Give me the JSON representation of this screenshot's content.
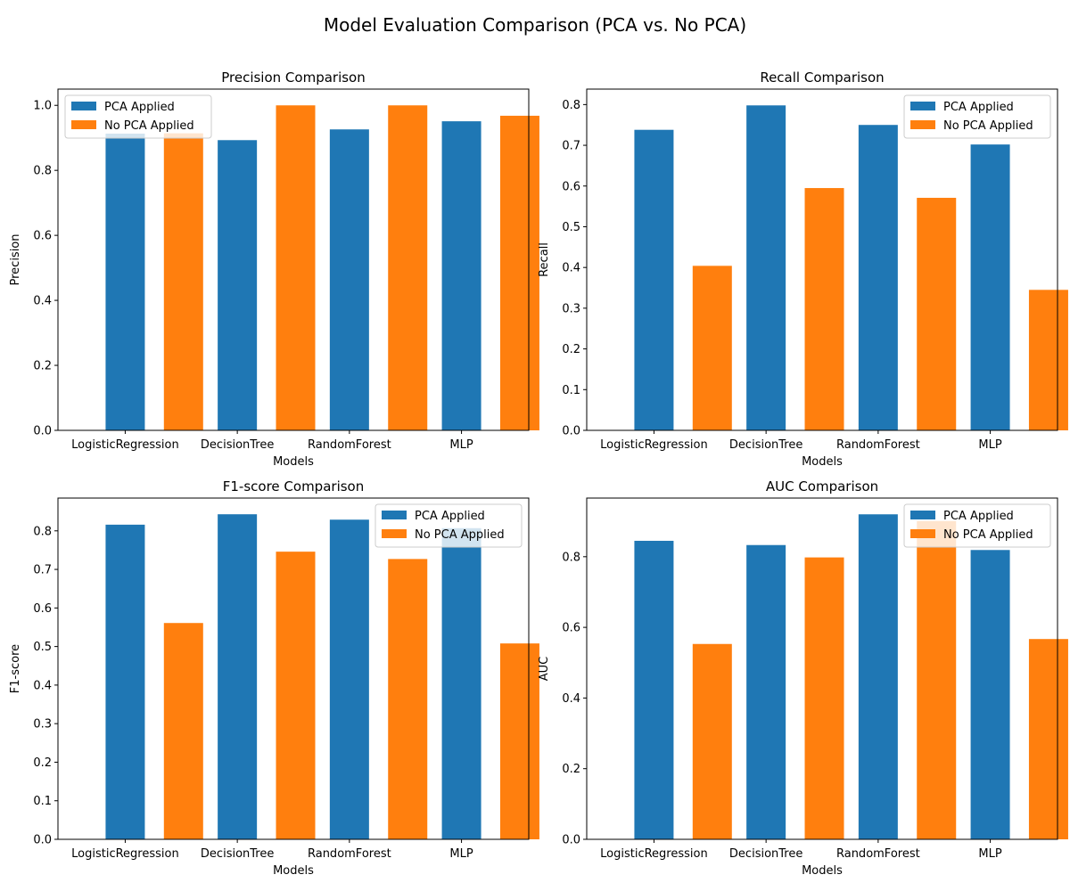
{
  "figure": {
    "title": "Model Evaluation Comparison (PCA vs. No PCA)"
  },
  "colors": {
    "pca": "#1f77b4",
    "no_pca": "#ff7f0e",
    "axis": "#000000",
    "legend_border": "#cccccc"
  },
  "chart_data": [
    {
      "type": "bar",
      "title": "Precision Comparison",
      "xlabel": "Models",
      "ylabel": "Precision",
      "categories": [
        "LogisticRegression",
        "DecisionTree",
        "RandomForest",
        "MLP"
      ],
      "series": [
        {
          "name": "PCA Applied",
          "values": [
            0.913,
            0.893,
            0.926,
            0.951
          ]
        },
        {
          "name": "No PCA Applied",
          "values": [
            0.914,
            1.0,
            1.0,
            0.968
          ]
        }
      ],
      "ylim": [
        0,
        1.05
      ],
      "yticks": [
        "0.0",
        "0.2",
        "0.4",
        "0.6",
        "0.8",
        "1.0"
      ],
      "grid": false,
      "legend": "top-left"
    },
    {
      "type": "bar",
      "title": "Recall Comparison",
      "xlabel": "Models",
      "ylabel": "Recall",
      "categories": [
        "LogisticRegression",
        "DecisionTree",
        "RandomForest",
        "MLP"
      ],
      "series": [
        {
          "name": "PCA Applied",
          "values": [
            0.738,
            0.798,
            0.75,
            0.702
          ]
        },
        {
          "name": "No PCA Applied",
          "values": [
            0.404,
            0.595,
            0.571,
            0.345
          ]
        }
      ],
      "ylim": [
        0,
        0.838
      ],
      "yticks": [
        "0.0",
        "0.1",
        "0.2",
        "0.3",
        "0.4",
        "0.5",
        "0.6",
        "0.7",
        "0.8"
      ],
      "grid": false,
      "legend": "top-right"
    },
    {
      "type": "bar",
      "title": "F1-score Comparison",
      "xlabel": "Models",
      "ylabel": "F1-score",
      "categories": [
        "LogisticRegression",
        "DecisionTree",
        "RandomForest",
        "MLP"
      ],
      "series": [
        {
          "name": "PCA Applied",
          "values": [
            0.816,
            0.843,
            0.829,
            0.807
          ]
        },
        {
          "name": "No PCA Applied",
          "values": [
            0.561,
            0.746,
            0.727,
            0.508
          ]
        }
      ],
      "ylim": [
        0,
        0.885
      ],
      "yticks": [
        "0.0",
        "0.1",
        "0.2",
        "0.3",
        "0.4",
        "0.5",
        "0.6",
        "0.7",
        "0.8"
      ],
      "grid": false,
      "legend": "top-right"
    },
    {
      "type": "bar",
      "title": "AUC Comparison",
      "xlabel": "Models",
      "ylabel": "AUC",
      "categories": [
        "LogisticRegression",
        "DecisionTree",
        "RandomForest",
        "MLP"
      ],
      "series": [
        {
          "name": "PCA Applied",
          "values": [
            0.845,
            0.833,
            0.92,
            0.819
          ]
        },
        {
          "name": "No PCA Applied",
          "values": [
            0.553,
            0.798,
            0.901,
            0.567
          ]
        }
      ],
      "ylim": [
        0,
        0.966
      ],
      "yticks": [
        "0.0",
        "0.2",
        "0.4",
        "0.6",
        "0.8"
      ],
      "grid": false,
      "legend": "top-right"
    }
  ]
}
